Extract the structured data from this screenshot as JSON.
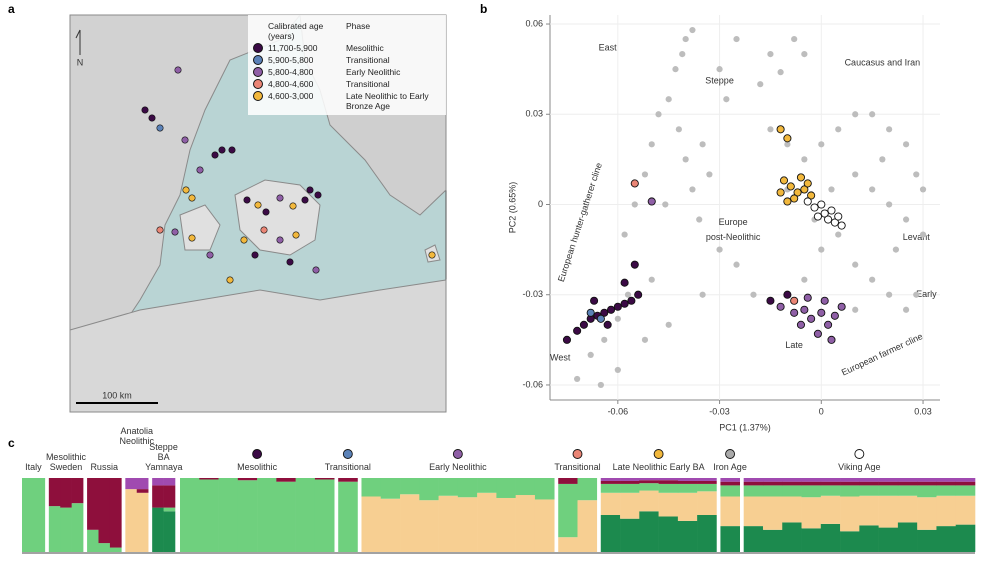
{
  "map": {
    "panel_label": "a",
    "north": "N",
    "scale_bar": "100 km",
    "legend": {
      "title": "Calibrated age (years)",
      "phase_title": "Phase",
      "entries": [
        {
          "age": "11,700-5,900",
          "phase": "Mesolithic",
          "color": "#3b0a45"
        },
        {
          "age": "5,900-5,800",
          "phase": "Transitional",
          "color": "#5b82b8"
        },
        {
          "age": "5,800-4,800",
          "phase": "Early Neolithic",
          "color": "#8f5fa6"
        },
        {
          "age": "4,800-4,600",
          "phase": "Transitional",
          "color": "#ea8575"
        },
        {
          "age": "4,600-3,000",
          "phase": "Late Neolithic to Early Bronze Age",
          "color": "#f2b83c"
        }
      ]
    }
  },
  "chart_data": [
    {
      "type": "scatter",
      "panel_label": "b",
      "xlabel": "PC1 (1.37%)",
      "ylabel": "PC2 (0.65%)",
      "xlim": [
        -0.08,
        0.035
      ],
      "ylim": [
        -0.065,
        0.063
      ],
      "xticks": [
        -0.06,
        -0.03,
        0,
        0.03
      ],
      "yticks": [
        -0.06,
        -0.03,
        0,
        0.03,
        0.06
      ],
      "grid": true,
      "annotations": [
        "East",
        "Steppe",
        "Caucasus and Iran",
        "European hunter-gatherer cline",
        "Europe",
        "post-Neolithic",
        "Levant",
        "Early",
        "Late",
        "West",
        "European farmer cline"
      ],
      "series": [
        {
          "color": "#bdbdbd",
          "x": [
            -0.072,
            -0.068,
            -0.064,
            -0.06,
            -0.057,
            -0.055,
            -0.058,
            -0.055,
            -0.052,
            -0.05,
            -0.048,
            -0.045,
            -0.043,
            -0.041,
            -0.04,
            -0.038,
            -0.042,
            -0.04,
            -0.038,
            -0.036,
            -0.035,
            -0.033,
            -0.03,
            -0.028,
            -0.02,
            -0.015,
            -0.018,
            -0.012,
            -0.008,
            -0.005,
            -0.015,
            -0.01,
            -0.005,
            0,
            0.005,
            0.01,
            0.015,
            0.02,
            0.025,
            0.028,
            0.01,
            0.015,
            0.02,
            0.025,
            0.03,
            0.005,
            0.01,
            0.015,
            0.02,
            0.025,
            0.028,
            0.01,
            0,
            -0.005,
            0.003,
            -0.01,
            -0.002,
            0.018,
            0.022,
            0.03,
            -0.06,
            -0.065,
            -0.052,
            -0.045,
            -0.035,
            -0.025,
            -0.03,
            -0.025,
            -0.05,
            -0.046
          ],
          "values": [
            -0.058,
            -0.05,
            -0.045,
            -0.038,
            -0.03,
            -0.02,
            -0.01,
            0,
            0.01,
            0.02,
            0.03,
            0.035,
            0.045,
            0.05,
            0.055,
            0.058,
            0.025,
            0.015,
            0.005,
            -0.005,
            0.02,
            0.01,
            -0.015,
            0.035,
            -0.03,
            0.05,
            0.04,
            0.044,
            0.055,
            0.05,
            0.025,
            0.02,
            0.015,
            0.02,
            0.025,
            0.03,
            0.03,
            0.025,
            0.02,
            0.01,
            0.01,
            0.005,
            0,
            -0.005,
            -0.01,
            -0.01,
            -0.02,
            -0.025,
            -0.03,
            -0.035,
            -0.03,
            -0.035,
            -0.015,
            -0.025,
            0.005,
            0.005,
            -0.005,
            0.015,
            -0.015,
            0.005,
            -0.055,
            -0.06,
            -0.045,
            -0.04,
            -0.03,
            -0.02,
            0.045,
            0.055,
            -0.025,
            0
          ]
        },
        {
          "color": "#3b0a45",
          "edgecolor": "#111111",
          "x": [
            -0.075,
            -0.072,
            -0.07,
            -0.068,
            -0.066,
            -0.064,
            -0.062,
            -0.06,
            -0.058,
            -0.056,
            -0.054,
            -0.058,
            -0.055,
            -0.067,
            -0.063,
            -0.015,
            -0.01
          ],
          "values": [
            -0.045,
            -0.042,
            -0.04,
            -0.038,
            -0.037,
            -0.036,
            -0.035,
            -0.034,
            -0.033,
            -0.032,
            -0.03,
            -0.026,
            -0.02,
            -0.032,
            -0.04,
            -0.032,
            -0.03
          ]
        },
        {
          "color": "#5b82b8",
          "edgecolor": "#111111",
          "x": [
            -0.065,
            -0.068
          ],
          "values": [
            -0.038,
            -0.036
          ]
        },
        {
          "color": "#8f5fa6",
          "edgecolor": "#111111",
          "x": [
            -0.05,
            -0.012,
            -0.008,
            -0.005,
            -0.003,
            0,
            0.002,
            0.004,
            -0.006,
            -0.001,
            0.003,
            -0.004,
            0.001,
            0.006
          ],
          "values": [
            0.001,
            -0.034,
            -0.036,
            -0.035,
            -0.038,
            -0.036,
            -0.04,
            -0.037,
            -0.04,
            -0.043,
            -0.045,
            -0.031,
            -0.032,
            -0.034
          ]
        },
        {
          "color": "#ea8575",
          "edgecolor": "#111111",
          "x": [
            -0.055,
            -0.008
          ],
          "values": [
            0.007,
            -0.032
          ]
        },
        {
          "color": "#f2b83c",
          "edgecolor": "#111111",
          "x": [
            -0.012,
            -0.01,
            -0.011,
            -0.009,
            -0.007,
            -0.005,
            -0.003,
            -0.012,
            -0.01,
            -0.006,
            -0.004,
            -0.008
          ],
          "values": [
            0.025,
            0.022,
            0.008,
            0.006,
            0.004,
            0.005,
            0.003,
            0.004,
            0.001,
            0.009,
            0.007,
            0.002
          ]
        },
        {
          "color": "#ffffff",
          "edgecolor": "#111111",
          "x": [
            -0.004,
            -0.002,
            0,
            0.001,
            0.003,
            0.002,
            0.004,
            -0.001,
            0.005,
            0.006
          ],
          "values": [
            0.001,
            -0.001,
            0,
            -0.003,
            -0.002,
            -0.005,
            -0.006,
            -0.004,
            -0.004,
            -0.007
          ]
        }
      ]
    },
    {
      "type": "bar",
      "stacked": true,
      "panel_label": "c",
      "ylim": [
        0,
        1
      ],
      "categories": [
        "Italy",
        null,
        "Mesolithic Sweden",
        null,
        null,
        "Russia",
        null,
        null,
        "Anatolia Neolithic",
        null,
        "Steppe BA Yamnaya",
        null,
        "Mesolithic",
        null,
        null,
        null,
        null,
        null,
        null,
        null,
        "Transitional",
        "Early Neolithic",
        null,
        null,
        null,
        null,
        null,
        null,
        null,
        null,
        null,
        "Transitional",
        null,
        "Late Neolithic Early BA",
        null,
        null,
        null,
        null,
        null,
        "Iron Age",
        "Viking Age",
        null,
        null,
        null,
        null,
        null,
        null,
        null,
        null,
        null,
        null,
        null
      ],
      "category_colors": [
        null,
        null,
        null,
        null,
        null,
        null,
        null,
        null,
        null,
        null,
        null,
        null,
        "#3b0a45",
        null,
        null,
        null,
        null,
        null,
        null,
        null,
        "#5b82b8",
        "#8f5fa6",
        null,
        null,
        null,
        null,
        null,
        null,
        null,
        null,
        null,
        "#ea8575",
        null,
        "#f2b83c",
        null,
        null,
        null,
        null,
        null,
        "#aaaaaa",
        "#ffffff",
        null,
        null,
        null,
        null,
        null,
        null,
        null,
        null,
        null,
        null,
        null
      ],
      "series": [
        {
          "color": "#1c8a4e",
          "values": [
            0,
            0,
            0,
            0,
            0,
            0,
            0,
            0,
            0,
            0,
            0.6,
            0.55,
            0,
            0,
            0,
            0,
            0,
            0,
            0,
            0,
            0,
            0,
            0,
            0,
            0,
            0,
            0,
            0,
            0,
            0,
            0,
            0,
            0,
            0.5,
            0.45,
            0.55,
            0.48,
            0.42,
            0.5,
            0.35,
            0.35,
            0.3,
            0.4,
            0.32,
            0.38,
            0.28,
            0.36,
            0.33,
            0.4,
            0.3,
            0.35,
            0.37
          ]
        },
        {
          "color": "#f7cf92",
          "values": [
            0,
            0,
            0,
            0,
            0,
            0,
            0,
            0,
            0.85,
            0.8,
            0,
            0,
            0,
            0,
            0,
            0,
            0,
            0,
            0,
            0,
            0,
            0.75,
            0.72,
            0.78,
            0.7,
            0.76,
            0.74,
            0.8,
            0.73,
            0.77,
            0.71,
            0.2,
            0.7,
            0.3,
            0.35,
            0.28,
            0.32,
            0.38,
            0.32,
            0.4,
            0.4,
            0.45,
            0.35,
            0.42,
            0.38,
            0.47,
            0.4,
            0.43,
            0.36,
            0.44,
            0.41,
            0.39
          ]
        },
        {
          "color": "#6fd07e",
          "values": [
            1,
            1,
            0.62,
            0.6,
            0.66,
            0.3,
            0.12,
            0.06,
            0,
            0,
            0,
            0.05,
            1,
            0.98,
            1,
            0.97,
            1,
            0.95,
            1,
            0.98,
            0.95,
            0.25,
            0.28,
            0.22,
            0.3,
            0.24,
            0.26,
            0.2,
            0.27,
            0.23,
            0.29,
            0.72,
            0.3,
            0.12,
            0.12,
            0.1,
            0.12,
            0.12,
            0.1,
            0.15,
            0.15,
            0.15,
            0.15,
            0.16,
            0.14,
            0.15,
            0.14,
            0.14,
            0.14,
            0.16,
            0.14,
            0.14
          ]
        },
        {
          "color": "#8e0f3c",
          "values": [
            0,
            0,
            0.38,
            0.4,
            0.34,
            0.7,
            0.88,
            0.94,
            0,
            0.05,
            0.3,
            0.3,
            0,
            0.02,
            0,
            0.03,
            0,
            0.05,
            0,
            0.02,
            0.05,
            0,
            0,
            0,
            0,
            0,
            0,
            0,
            0,
            0,
            0,
            0.08,
            0,
            0.04,
            0.04,
            0.04,
            0.05,
            0.04,
            0.04,
            0.05,
            0.05,
            0.05,
            0.05,
            0.05,
            0.05,
            0.05,
            0.05,
            0.05,
            0.05,
            0.05,
            0.05,
            0.05
          ]
        },
        {
          "color": "#a04ab0",
          "values": [
            0,
            0,
            0,
            0,
            0,
            0,
            0,
            0,
            0.15,
            0.15,
            0.1,
            0.1,
            0,
            0,
            0,
            0,
            0,
            0,
            0,
            0,
            0,
            0,
            0,
            0,
            0,
            0,
            0,
            0,
            0,
            0,
            0,
            0,
            0,
            0.04,
            0.04,
            0.03,
            0.03,
            0.04,
            0.04,
            0.05,
            0.05,
            0.05,
            0.05,
            0.05,
            0.05,
            0.05,
            0.05,
            0.05,
            0.05,
            0.05,
            0.05,
            0.05
          ]
        }
      ]
    }
  ]
}
